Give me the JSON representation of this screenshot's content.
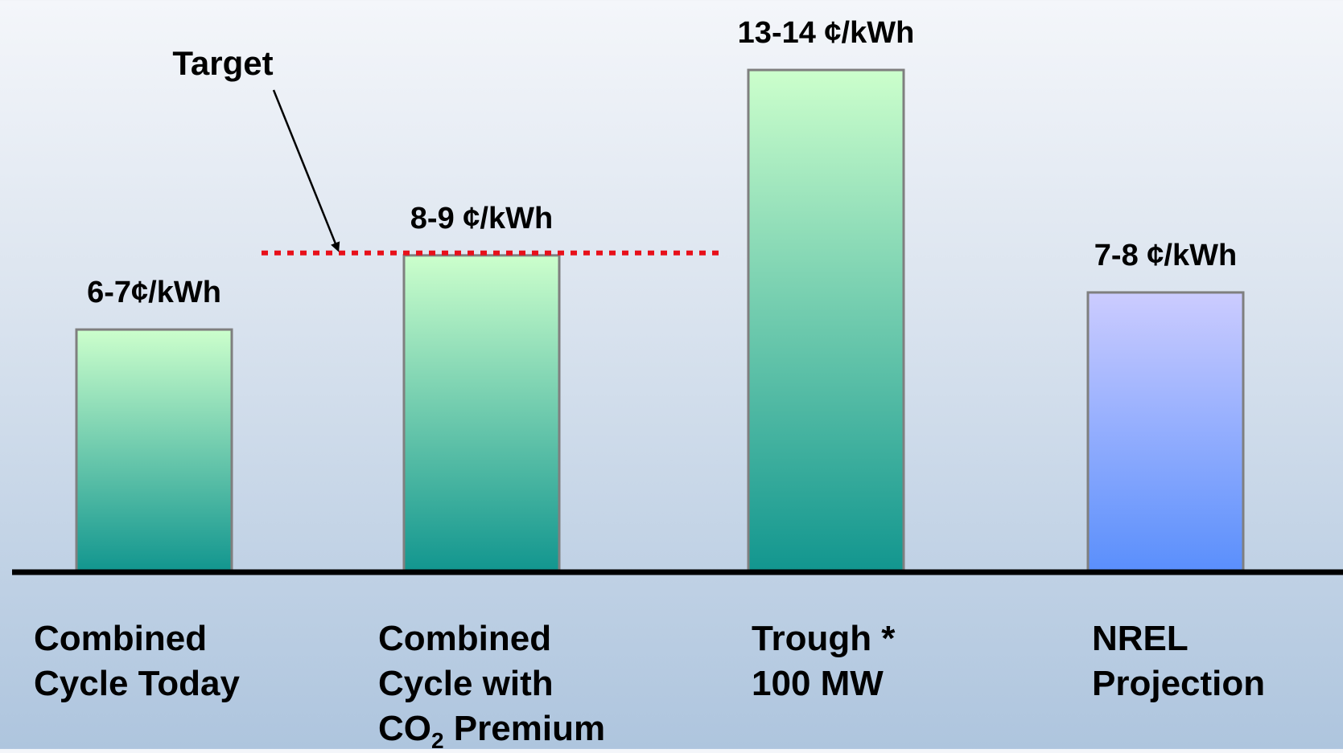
{
  "chart_data": {
    "type": "bar",
    "categories": [
      "Combined Cycle Today",
      "Combined Cycle with CO2 Premium",
      "Trough * 100 MW",
      "NREL Projection"
    ],
    "values": [
      6.5,
      8.5,
      13.5,
      7.5
    ],
    "value_labels": [
      "6-7¢/kWh",
      "8-9 ¢/kWh",
      "13-14 ¢/kWh",
      "7-8 ¢/kWh"
    ],
    "ylim": [
      0,
      14
    ],
    "target": {
      "label": "Target",
      "value": 8.5,
      "color": "#e8101a"
    },
    "colors": {
      "green_top": "#ccffcc",
      "green_bottom": "#12968f",
      "blue_top": "#ccccff",
      "blue_bottom": "#5a8ffc",
      "bar_border": "#7f7f7f",
      "axis": "#000000"
    }
  },
  "categories_display": {
    "c1": {
      "l1": "Combined",
      "l2": "Cycle Today"
    },
    "c2": {
      "l1": "Combined",
      "l2": "Cycle with",
      "l3a": "CO",
      "l3sub": "2",
      "l3b": " Premium"
    },
    "c3": {
      "l1": "Trough *",
      "l2": "100 MW"
    },
    "c4": {
      "l1": "NREL",
      "l2": "Projection"
    }
  }
}
